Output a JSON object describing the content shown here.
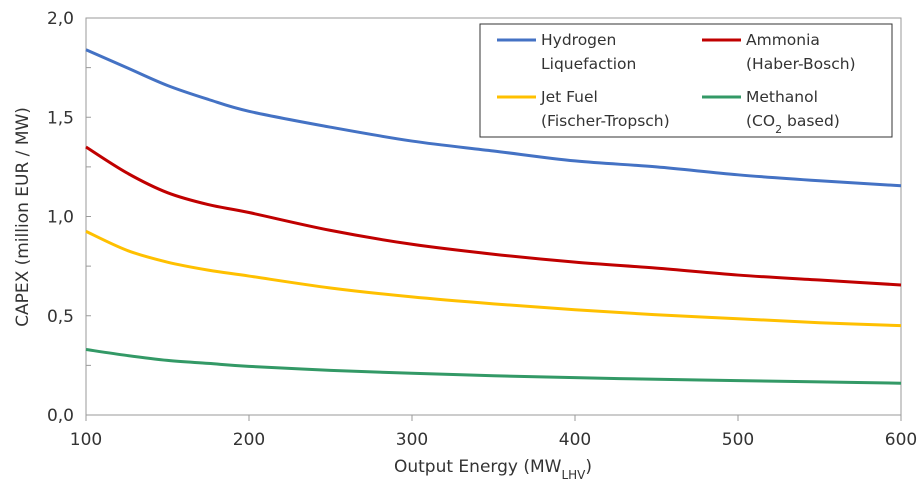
{
  "chart_data": {
    "type": "line",
    "title": "",
    "xlabel": "Output Energy (MW",
    "xlabel_sub": "LHV",
    "xlabel_suffix": ")",
    "ylabel": "CAPEX (million EUR / MW)",
    "xlim": [
      100,
      600
    ],
    "ylim": [
      0,
      2
    ],
    "x_ticks": [
      100,
      200,
      300,
      400,
      500,
      600
    ],
    "x_tick_labels": [
      "100",
      "200",
      "300",
      "400",
      "500",
      "600"
    ],
    "y_ticks": [
      0,
      0.5,
      1,
      1.5,
      2
    ],
    "y_tick_labels": [
      "0,0",
      "0,5",
      "1,0",
      "1,5",
      "2,0"
    ],
    "y_minor_step": 0.25,
    "grid": false,
    "legend_position": "top-right",
    "x": [
      100,
      125,
      150,
      175,
      200,
      250,
      300,
      350,
      400,
      450,
      500,
      550,
      600
    ],
    "series": [
      {
        "name": "Hydrogen",
        "name_line2": "Liquefaction",
        "color": "#4472c4",
        "values": [
          1.84,
          1.75,
          1.66,
          1.59,
          1.53,
          1.45,
          1.38,
          1.33,
          1.28,
          1.25,
          1.21,
          1.18,
          1.155
        ]
      },
      {
        "name": "Ammonia",
        "name_line2": "(Haber-Bosch)",
        "color": "#c00000",
        "values": [
          1.35,
          1.22,
          1.12,
          1.06,
          1.02,
          0.93,
          0.86,
          0.81,
          0.77,
          0.74,
          0.705,
          0.68,
          0.655
        ]
      },
      {
        "name": "Jet Fuel",
        "name_line2": "(Fischer-Tropsch)",
        "color": "#ffc000",
        "values": [
          0.925,
          0.83,
          0.77,
          0.73,
          0.7,
          0.64,
          0.595,
          0.56,
          0.53,
          0.505,
          0.485,
          0.465,
          0.45
        ]
      },
      {
        "name": "Methanol",
        "name_line2_pre": "(CO",
        "name_line2_sub": "2",
        "name_line2_post": " based)",
        "color": "#339966",
        "values": [
          0.33,
          0.3,
          0.275,
          0.26,
          0.245,
          0.225,
          0.21,
          0.198,
          0.188,
          0.18,
          0.173,
          0.167,
          0.16
        ]
      }
    ]
  }
}
